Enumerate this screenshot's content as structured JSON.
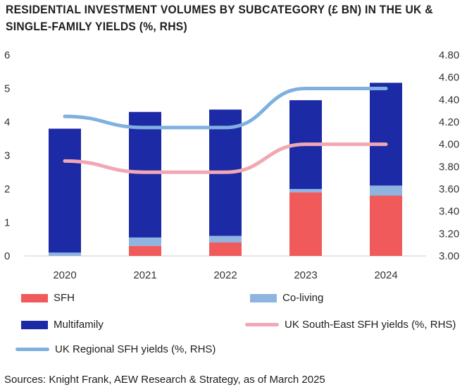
{
  "title_line1": "RESIDENTIAL INVESTMENT VOLUMES BY SUBCATEGORY (£ BN) IN THE UK &",
  "title_line2": "SINGLE-FAMILY YIELDS (%, RHS)",
  "source": "Sources: Knight Frank, AEW Research & Strategy, as of March 2025",
  "colors": {
    "sfh": "#f15a5a",
    "coliving": "#8fb4e0",
    "multifamily": "#1c2aa5",
    "southeast": "#f2a7b4",
    "regional": "#7fb0e0",
    "axis": "#cccccc"
  },
  "chart_data": {
    "type": "bar",
    "stacked": true,
    "categories": [
      "2020",
      "2021",
      "2022",
      "2023",
      "2024"
    ],
    "series": [
      {
        "name": "SFH",
        "values": [
          0,
          0.3,
          0.4,
          1.9,
          1.8
        ]
      },
      {
        "name": "Co-living",
        "values": [
          0.1,
          0.25,
          0.2,
          0.1,
          0.3
        ]
      },
      {
        "name": "Multifamily",
        "values": [
          3.7,
          3.75,
          3.77,
          2.65,
          3.07
        ]
      }
    ],
    "line_series": [
      {
        "name": "UK South-East SFH yields (%, RHS)",
        "values": [
          3.85,
          3.75,
          3.75,
          4.0,
          4.0
        ]
      },
      {
        "name": "UK Regional SFH yields (%, RHS)",
        "values": [
          4.25,
          4.15,
          4.15,
          4.5,
          4.5
        ]
      }
    ],
    "ylim": [
      0,
      6
    ],
    "yticks": [
      "0",
      "1",
      "2",
      "3",
      "4",
      "5",
      "6"
    ],
    "y2lim": [
      3.0,
      4.8
    ],
    "y2ticks": [
      "3.00",
      "3.20",
      "3.40",
      "3.60",
      "3.80",
      "4.00",
      "4.20",
      "4.40",
      "4.60",
      "4.80"
    ],
    "legend_position": "bottom"
  },
  "legend": {
    "sfh": "SFH",
    "coliving": "Co-living",
    "multifamily": "Multifamily",
    "southeast": "UK South-East SFH yields (%, RHS)",
    "regional": "UK Regional SFH yields (%, RHS)"
  }
}
